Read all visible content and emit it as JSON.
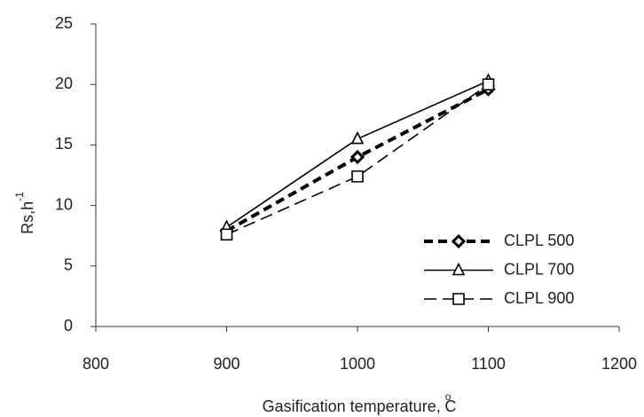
{
  "chart_data": {
    "type": "line",
    "ylabel": "Rs,h",
    "ylabel_superscript": "-1",
    "xlabel": "Gasification temperature,",
    "xlabel_unit": "C",
    "xlabel_unit_superscript": "o",
    "x": [
      900,
      1000,
      1100
    ],
    "series": [
      {
        "name": "CLPL 500",
        "color": "#000000",
        "marker": "diamond",
        "dash": "thick-dash",
        "values": [
          7.9,
          14.0,
          19.6
        ]
      },
      {
        "name": "CLPL 700",
        "color": "#000000",
        "marker": "triangle",
        "dash": "solid",
        "values": [
          8.2,
          15.5,
          20.3
        ]
      },
      {
        "name": "CLPL 900",
        "color": "#000000",
        "marker": "square",
        "dash": "dash",
        "values": [
          7.6,
          12.4,
          20.0
        ]
      }
    ],
    "xlim": [
      800,
      1200
    ],
    "xticks": [
      800,
      900,
      1000,
      1100,
      1200
    ],
    "ylim": [
      0,
      25
    ],
    "yticks": [
      0,
      5,
      10,
      15,
      20,
      25
    ],
    "grid": false,
    "legend": "lower-right"
  }
}
